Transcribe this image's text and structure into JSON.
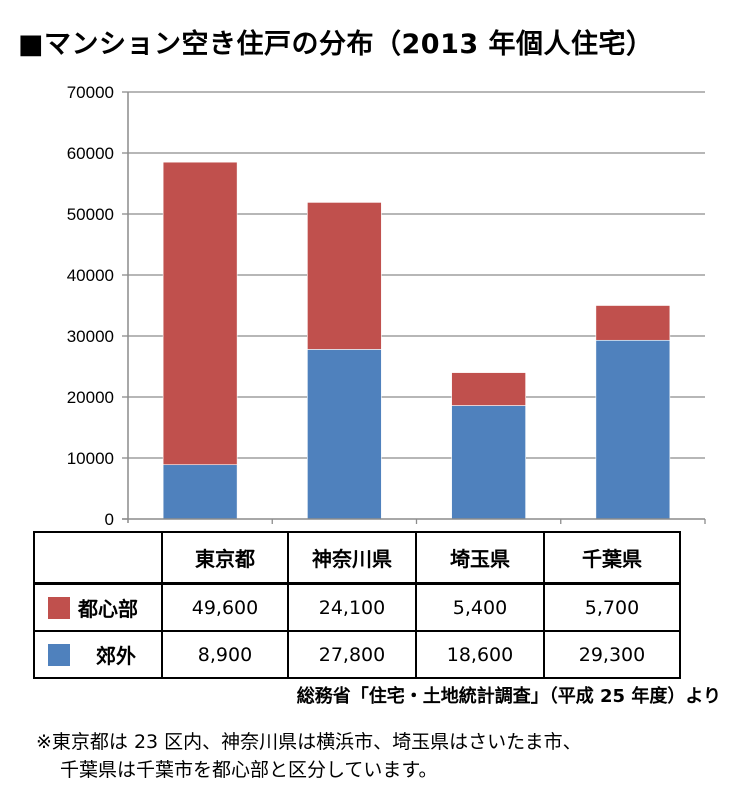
{
  "chart_data": {
    "type": "bar",
    "stacked": true,
    "title": "■マンション空き住戸の分布（2013 年個人住宅）",
    "categories": [
      "東京都",
      "神奈川県",
      "埼玉県",
      "千葉県"
    ],
    "series": [
      {
        "name": "郊外",
        "color": "#4f81bd",
        "values": [
          8900,
          27800,
          18600,
          29300
        ],
        "labels": [
          "8,900",
          "27,800",
          "18,600",
          "29,300"
        ]
      },
      {
        "name": "都心部",
        "color": "#c0504d",
        "values": [
          49600,
          24100,
          5400,
          5700
        ],
        "labels": [
          "49,600",
          "24,100",
          "5,400",
          "5,700"
        ]
      }
    ],
    "ylim": [
      0,
      70000
    ],
    "yticks": [
      0,
      10000,
      20000,
      30000,
      40000,
      50000,
      60000,
      70000
    ],
    "grid": true,
    "source": "総務省「住宅・土地統計調査」（平成 25 年度）より",
    "note": [
      "※東京都は 23 区内、神奈川県は横浜市、埼玉県はさいたま市、",
      "千葉県は千葉市を都心部と区分しています。"
    ]
  }
}
